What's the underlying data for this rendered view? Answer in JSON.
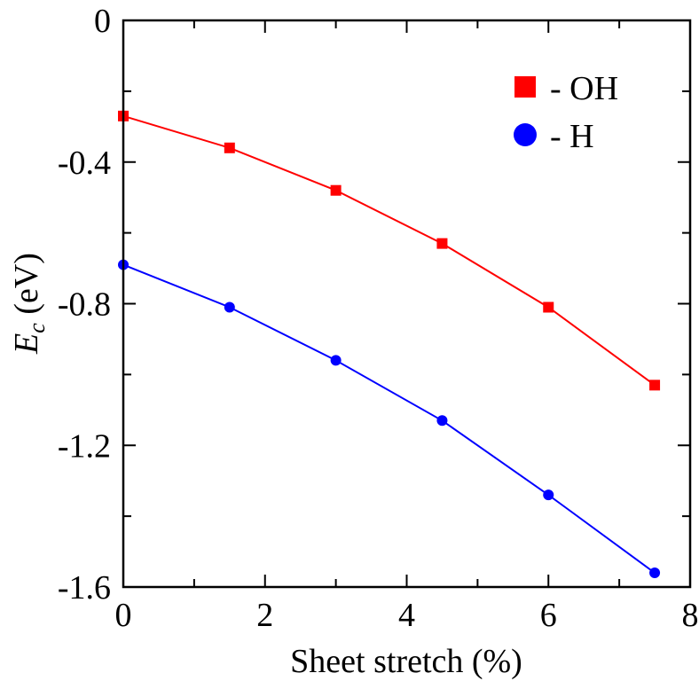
{
  "chart_data": {
    "type": "line",
    "title": "",
    "xlabel": "Sheet stretch (%)",
    "ylabel_main": "E",
    "ylabel_sub": "c",
    "ylabel_unit": " (eV)",
    "xlim": [
      0,
      8
    ],
    "ylim": [
      -1.6,
      0
    ],
    "xticks": [
      0,
      2,
      4,
      6,
      8
    ],
    "yticks": [
      0,
      -0.4,
      -0.8,
      -1.2,
      -1.6
    ],
    "xtick_labels": [
      "0",
      "2",
      "4",
      "6",
      "8"
    ],
    "ytick_labels": [
      "0",
      "-0.4",
      "-0.8",
      "-1.2",
      "-1.6"
    ],
    "grid": false,
    "legend_position": "top-right",
    "x": [
      0,
      1.5,
      3,
      4.5,
      6,
      7.5
    ],
    "series": [
      {
        "name": "- OH",
        "marker": "square",
        "color": "#ff0000",
        "values": [
          -0.27,
          -0.36,
          -0.48,
          -0.63,
          -0.81,
          -1.03
        ]
      },
      {
        "name": "- H",
        "marker": "circle",
        "color": "#0000ff",
        "values": [
          -0.69,
          -0.81,
          -0.96,
          -1.13,
          -1.34,
          -1.56
        ]
      }
    ]
  }
}
